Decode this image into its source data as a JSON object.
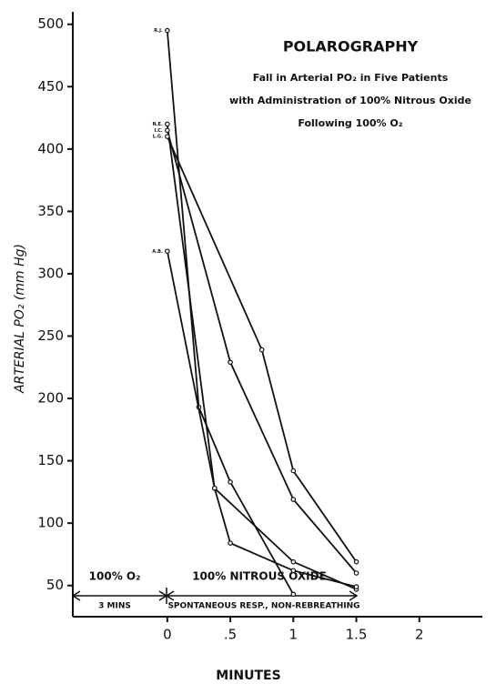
{
  "chart_data": {
    "type": "line",
    "title": "POLAROGRAPHY",
    "subtitle": [
      "Fall in Arterial PO₂ in Five Patients",
      "with Administration of 100% Nitrous Oxide",
      "Following 100% O₂"
    ],
    "y_label": "ARTERIAL PO₂ (mm Hg)",
    "x_label": "MINUTES",
    "annotations": [
      "100% O₂",
      "3 MINS",
      "100% NITROUS OXIDE",
      "SPONTANEOUS RESP., NON-REBREATHING"
    ],
    "xlim": [
      -0.75,
      2.5
    ],
    "ylim": [
      25,
      510
    ],
    "xticks": [
      0,
      {
        "value": 0.5,
        "label": ".5"
      },
      1,
      1.5,
      2
    ],
    "yticks": [
      50,
      100,
      150,
      200,
      250,
      300,
      350,
      400,
      450,
      500
    ],
    "series": [
      {
        "name": "R.J.",
        "color": "#111111",
        "x": [
          0,
          0.25,
          0.5,
          1
        ],
        "values": [
          495,
          193,
          133,
          43
        ]
      },
      {
        "name": "N.E.",
        "color": "#111111",
        "x": [
          0,
          0.375,
          1,
          1.5
        ],
        "values": [
          420,
          128,
          69,
          47
        ]
      },
      {
        "name": "I.C.",
        "color": "#111111",
        "x": [
          0,
          0.5,
          1,
          1.5
        ],
        "values": [
          415,
          229,
          119,
          60
        ]
      },
      {
        "name": "L.G.",
        "color": "#111111",
        "x": [
          0,
          0.75,
          1,
          1.5
        ],
        "values": [
          410,
          239,
          142,
          69
        ]
      },
      {
        "name": "A.B.",
        "color": "#111111",
        "x": [
          0,
          0.375,
          0.5,
          1,
          1.5
        ],
        "values": [
          318,
          128,
          84,
          62,
          49
        ]
      }
    ]
  }
}
